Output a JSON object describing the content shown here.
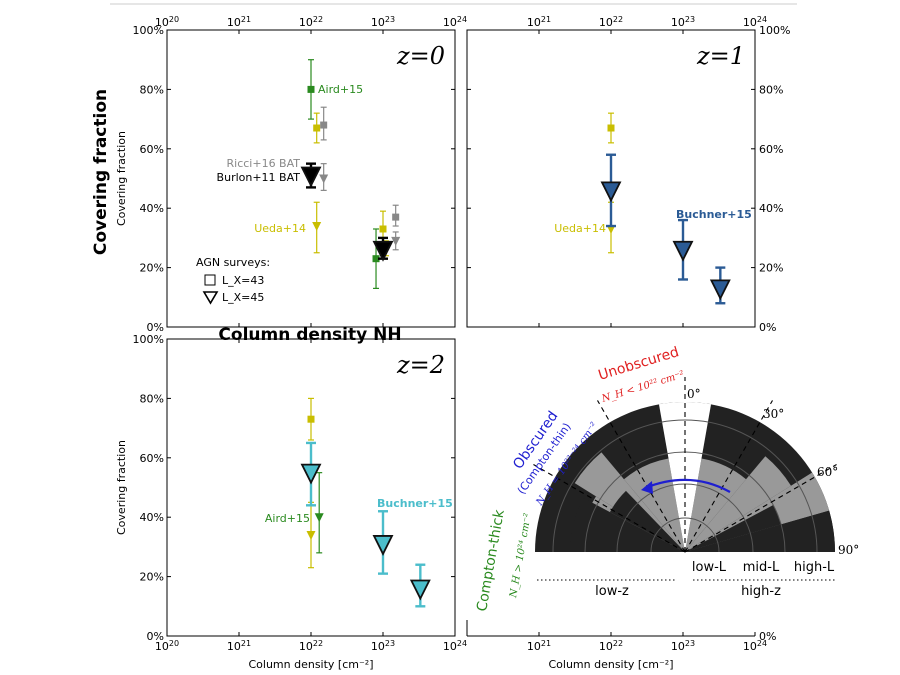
{
  "figure": {
    "outer_ylabel": "Covering fraction",
    "outer_xlabel": "Column density NH",
    "colors": {
      "aird": "#2a8a1f",
      "ueda": "#c9be00",
      "ricci": "#888888",
      "burlon": "#000000",
      "buchner_z1": "#2b5b95",
      "buchner_z2": "#4bbdcb",
      "unobscured": "#e02020",
      "obscured": "#1f1fd0",
      "compton_thick": "#2a8a1f"
    }
  },
  "axis_text": {
    "y_label": "Covering fraction",
    "x_label": "Column density [cm⁻²]",
    "y_ticks": [
      "0%",
      "20%",
      "40%",
      "60%",
      "80%",
      "100%"
    ],
    "x_tick_exponents": [
      "20",
      "21",
      "22",
      "23",
      "24"
    ],
    "x_tick_base": "10"
  },
  "chart_data": [
    {
      "type": "scatter",
      "panel": "z=0",
      "title": "z = 0",
      "x_scale": "log",
      "xlim": [
        1e+20,
        1e+24
      ],
      "ylim": [
        0,
        100
      ],
      "series": [
        {
          "name": "Aird+15",
          "marker": "square",
          "points": [
            {
              "x": 1e+22,
              "y": 80,
              "yerr": [
                70,
                90
              ]
            },
            {
              "x": 8e+22,
              "y": 23,
              "yerr": [
                13,
                33
              ]
            }
          ]
        },
        {
          "name": "Ueda+14",
          "marker": "square",
          "points": [
            {
              "x": 1.2e+22,
              "y": 67,
              "yerr": [
                62,
                72
              ]
            },
            {
              "x": 1e+23,
              "y": 33,
              "yerr": [
                28,
                39
              ]
            }
          ]
        },
        {
          "name": "Ueda+14",
          "marker": "triangle",
          "points": [
            {
              "x": 1.2e+22,
              "y": 34,
              "yerr": [
                25,
                42
              ]
            },
            {
              "x": 1.1e+23,
              "y": 27,
              "yerr": [
                24,
                29
              ]
            }
          ]
        },
        {
          "name": "Ricci+16 BAT",
          "marker": "square",
          "points": [
            {
              "x": 1.5e+22,
              "y": 68,
              "yerr": [
                63,
                74
              ]
            },
            {
              "x": 1.5e+23,
              "y": 37,
              "yerr": [
                34,
                41
              ]
            }
          ]
        },
        {
          "name": "Ricci+16 BAT",
          "marker": "triangle",
          "points": [
            {
              "x": 1.5e+22,
              "y": 50,
              "yerr": [
                46,
                55
              ]
            },
            {
              "x": 1.5e+23,
              "y": 29,
              "yerr": [
                26,
                32
              ]
            }
          ]
        },
        {
          "name": "Burlon+11 BAT",
          "marker": "triangle-large",
          "points": [
            {
              "x": 1e+22,
              "y": 51,
              "yerr": [
                47,
                55
              ]
            },
            {
              "x": 1e+23,
              "y": 26,
              "yerr": [
                23,
                30
              ]
            }
          ]
        }
      ],
      "annotations": [
        "Aird+15",
        "Ricci+16 BAT",
        "Burlon+11 BAT",
        "Ueda+14"
      ],
      "legend": {
        "title": "AGN surveys:",
        "items": [
          "L_X=43",
          "L_X=45"
        ],
        "location": "lower-left"
      }
    },
    {
      "type": "scatter",
      "panel": "z=1",
      "title": "z = 1",
      "x_scale": "log",
      "xlim": [
        1e+20,
        1e+24
      ],
      "ylim": [
        0,
        100
      ],
      "series": [
        {
          "name": "Ueda+14",
          "marker": "square",
          "points": [
            {
              "x": 1e+22,
              "y": 67,
              "yerr": [
                62,
                72
              ]
            }
          ]
        },
        {
          "name": "Ueda+14",
          "marker": "triangle",
          "points": [
            {
              "x": 1e+22,
              "y": 33,
              "yerr": [
                25,
                42
              ]
            }
          ]
        },
        {
          "name": "Buchner+15",
          "marker": "triangle-large",
          "points": [
            {
              "x": 1e+22,
              "y": 46,
              "yerr": [
                34,
                58
              ]
            },
            {
              "x": 1e+23,
              "y": 26,
              "yerr": [
                16,
                36
              ]
            },
            {
              "x": 3.3e+23,
              "y": 13,
              "yerr": [
                8,
                20
              ]
            }
          ]
        }
      ],
      "annotations": [
        "Ueda+14",
        "Buchner+15"
      ]
    },
    {
      "type": "scatter",
      "panel": "z=2",
      "title": "z = 2",
      "x_scale": "log",
      "xlim": [
        1e+20,
        1e+24
      ],
      "ylim": [
        0,
        100
      ],
      "series": [
        {
          "name": "Ueda+14",
          "marker": "square",
          "points": [
            {
              "x": 1e+22,
              "y": 73,
              "yerr": [
                66,
                80
              ]
            }
          ]
        },
        {
          "name": "Ueda+14",
          "marker": "triangle",
          "points": [
            {
              "x": 1e+22,
              "y": 34,
              "yerr": [
                23,
                45
              ]
            }
          ]
        },
        {
          "name": "Aird+15",
          "marker": "triangle",
          "points": [
            {
              "x": 1.3e+22,
              "y": 40,
              "yerr": [
                28,
                55
              ]
            }
          ]
        },
        {
          "name": "Buchner+15",
          "marker": "triangle-large",
          "points": [
            {
              "x": 1e+22,
              "y": 55,
              "yerr": [
                44,
                65
              ]
            },
            {
              "x": 1e+23,
              "y": 31,
              "yerr": [
                21,
                42
              ]
            },
            {
              "x": 3.3e+23,
              "y": 16,
              "yerr": [
                10,
                24
              ]
            }
          ]
        }
      ],
      "annotations": [
        "Aird+15",
        "Buchner+15"
      ]
    }
  ],
  "schematic": {
    "unobscured": "Unobscured",
    "unobscured_sub": "N_H < 10²² cm⁻²",
    "obscured": "Obscured",
    "obscured_paren": "(Compton-thin)",
    "obscured_sub": "N_H = 10²²⁻²⁴ cm⁻²",
    "compton_thick": "Compton-thick",
    "compton_thick_sub": "N_H > 10²⁴ cm⁻²",
    "angles": [
      "0°",
      "30°",
      "60°",
      "90°"
    ],
    "lum_labels": [
      "low-L",
      "mid-L",
      "high-L"
    ],
    "z_labels": [
      "low-z",
      "high-z"
    ]
  }
}
